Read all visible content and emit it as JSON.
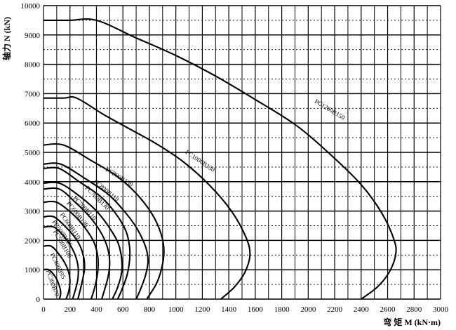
{
  "chart_data": {
    "type": "line",
    "title": "",
    "xlabel": "弯 矩 M (kN·m)",
    "ylabel": "轴力 N (kN)",
    "xlim": [
      0,
      3000
    ],
    "ylim": [
      0,
      10000
    ],
    "xticks": [
      0,
      200,
      400,
      600,
      800,
      1000,
      1200,
      1400,
      1600,
      1800,
      2000,
      2200,
      2400,
      2600,
      2800,
      3000
    ],
    "yticks": [
      0,
      1000,
      2000,
      3000,
      4000,
      5000,
      6000,
      7000,
      8000,
      9000,
      10000
    ],
    "grid": true,
    "legend": "none",
    "series": [
      {
        "name": "PC1200B150",
        "points": [
          [
            0,
            9500
          ],
          [
            200,
            9500
          ],
          [
            400,
            9500
          ],
          [
            700,
            8900
          ],
          [
            1000,
            8300
          ],
          [
            1300,
            7600
          ],
          [
            1600,
            6800
          ],
          [
            1900,
            5950
          ],
          [
            2150,
            5000
          ],
          [
            2400,
            3900
          ],
          [
            2560,
            2900
          ],
          [
            2650,
            2000
          ],
          [
            2660,
            1500
          ],
          [
            2610,
            900
          ],
          [
            2520,
            400
          ],
          [
            2400,
            0
          ]
        ]
      },
      {
        "name": "PC1000B130",
        "points": [
          [
            0,
            6850
          ],
          [
            150,
            6850
          ],
          [
            250,
            6850
          ],
          [
            450,
            6300
          ],
          [
            650,
            5800
          ],
          [
            850,
            5300
          ],
          [
            1050,
            4700
          ],
          [
            1250,
            3900
          ],
          [
            1420,
            3000
          ],
          [
            1530,
            2100
          ],
          [
            1560,
            1500
          ],
          [
            1520,
            900
          ],
          [
            1440,
            400
          ],
          [
            1340,
            0
          ]
        ]
      },
      {
        "name": "PC800B130",
        "points": [
          [
            0,
            5250
          ],
          [
            150,
            5250
          ],
          [
            350,
            4750
          ],
          [
            550,
            4200
          ],
          [
            700,
            3600
          ],
          [
            820,
            2900
          ],
          [
            890,
            2200
          ],
          [
            910,
            1600
          ],
          [
            890,
            1000
          ],
          [
            850,
            500
          ],
          [
            780,
            0
          ]
        ]
      },
      {
        "name": "PC800B110",
        "points": [
          [
            0,
            4600
          ],
          [
            130,
            4600
          ],
          [
            300,
            4150
          ],
          [
            480,
            3600
          ],
          [
            600,
            3050
          ],
          [
            700,
            2450
          ],
          [
            770,
            1800
          ],
          [
            790,
            1300
          ],
          [
            770,
            800
          ],
          [
            730,
            300
          ],
          [
            700,
            0
          ]
        ]
      },
      {
        "name": "PC700B130",
        "points": [
          [
            0,
            4450
          ],
          [
            120,
            4450
          ],
          [
            270,
            4000
          ],
          [
            430,
            3500
          ],
          [
            540,
            2950
          ],
          [
            620,
            2350
          ],
          [
            650,
            1800
          ],
          [
            650,
            1300
          ],
          [
            630,
            800
          ],
          [
            590,
            300
          ],
          [
            560,
            0
          ]
        ]
      },
      {
        "name": "PC700B110",
        "points": [
          [
            0,
            3950
          ],
          [
            120,
            3950
          ],
          [
            260,
            3550
          ],
          [
            390,
            3050
          ],
          [
            480,
            2550
          ],
          [
            560,
            1950
          ],
          [
            590,
            1400
          ],
          [
            590,
            900
          ],
          [
            560,
            400
          ],
          [
            520,
            0
          ]
        ]
      },
      {
        "name": "PC600B130",
        "points": [
          [
            0,
            3750
          ],
          [
            120,
            3750
          ],
          [
            240,
            3300
          ],
          [
            350,
            2800
          ],
          [
            430,
            2300
          ],
          [
            480,
            1800
          ],
          [
            500,
            1300
          ],
          [
            490,
            800
          ],
          [
            460,
            300
          ],
          [
            440,
            0
          ]
        ]
      },
      {
        "name": "PC600B110",
        "points": [
          [
            0,
            3300
          ],
          [
            100,
            3300
          ],
          [
            220,
            2900
          ],
          [
            310,
            2450
          ],
          [
            380,
            1950
          ],
          [
            410,
            1450
          ],
          [
            410,
            950
          ],
          [
            390,
            450
          ],
          [
            360,
            0
          ]
        ]
      },
      {
        "name": "PC500B125",
        "points": [
          [
            0,
            2800
          ],
          [
            80,
            2800
          ],
          [
            180,
            2400
          ],
          [
            260,
            1950
          ],
          [
            300,
            1500
          ],
          [
            310,
            1050
          ],
          [
            290,
            550
          ],
          [
            260,
            0
          ]
        ]
      },
      {
        "name": "PC500B100",
        "points": [
          [
            0,
            2450
          ],
          [
            80,
            2450
          ],
          [
            170,
            2050
          ],
          [
            230,
            1600
          ],
          [
            260,
            1150
          ],
          [
            260,
            700
          ],
          [
            240,
            300
          ],
          [
            220,
            0
          ]
        ]
      },
      {
        "name": "PC400B95",
        "points": [
          [
            0,
            1800
          ],
          [
            60,
            1800
          ],
          [
            130,
            1450
          ],
          [
            180,
            1050
          ],
          [
            200,
            650
          ],
          [
            190,
            250
          ],
          [
            170,
            0
          ]
        ]
      },
      {
        "name": "PC300B70",
        "points": [
          [
            0,
            1000
          ],
          [
            40,
            1000
          ],
          [
            90,
            750
          ],
          [
            120,
            450
          ],
          [
            130,
            200
          ],
          [
            120,
            0
          ]
        ]
      }
    ],
    "curve_labels": [
      {
        "text": "PC1200B150",
        "x": 2155,
        "y": 6400,
        "angle": 31
      },
      {
        "text": "PC1000B130",
        "x": 1175,
        "y": 4650,
        "angle": 34
      },
      {
        "text": "PC800B130",
        "x": 565,
        "y": 4100,
        "angle": 32
      },
      {
        "text": "PC800B110",
        "x": 465,
        "y": 3650,
        "angle": 40
      },
      {
        "text": "PC700B130",
        "x": 395,
        "y": 3400,
        "angle": 45
      },
      {
        "text": "PC700B110",
        "x": 300,
        "y": 3050,
        "angle": 47
      },
      {
        "text": "PC600B130",
        "x": 245,
        "y": 2850,
        "angle": 52
      },
      {
        "text": "PC600B110",
        "x": 190,
        "y": 2450,
        "angle": 55
      },
      {
        "text": "PC500B125",
        "x": 130,
        "y": 2200,
        "angle": 55
      },
      {
        "text": "PC500B100",
        "x": 130,
        "y": 1850,
        "angle": 60
      },
      {
        "text": "PC400B95",
        "x": 95,
        "y": 1100,
        "angle": 64
      },
      {
        "text": "PC300B70",
        "x": 55,
        "y": 520,
        "angle": 70
      }
    ]
  }
}
